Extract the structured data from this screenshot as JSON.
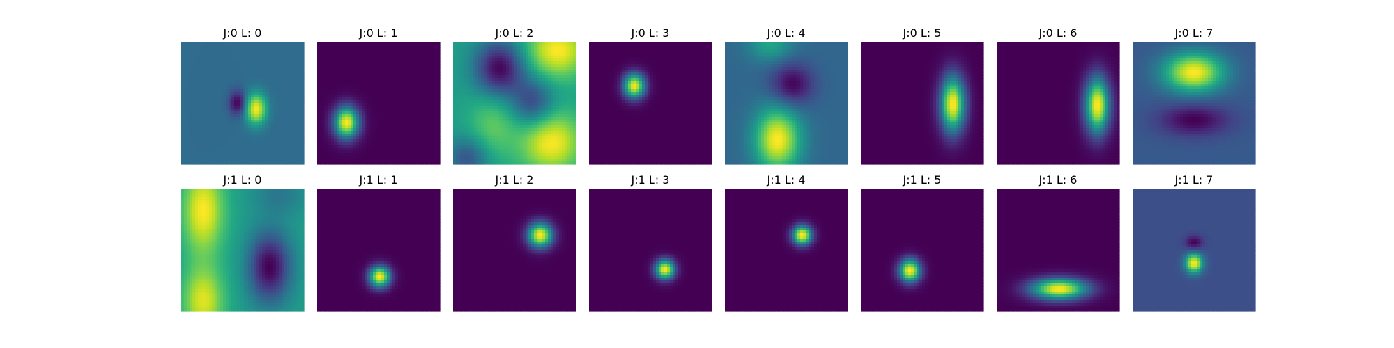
{
  "chart_data": {
    "type": "heatmap",
    "colormap": "viridis",
    "panels": [
      {
        "title": "J:0 L: 0",
        "j": 0,
        "l": 0,
        "background": 0.35,
        "blobs": [
          {
            "cx": 0.61,
            "cy": 0.55,
            "sx": 0.06,
            "sy": 0.09,
            "amp": 0.65
          },
          {
            "cx": 0.46,
            "cy": 0.5,
            "sx": 0.05,
            "sy": 0.07,
            "amp": -0.35
          }
        ]
      },
      {
        "title": "J:0 L: 1",
        "j": 0,
        "l": 1,
        "background": 0.0,
        "blobs": [
          {
            "cx": 0.24,
            "cy": 0.66,
            "sx": 0.07,
            "sy": 0.09,
            "amp": 1.0
          }
        ]
      },
      {
        "title": "J:0 L: 2",
        "j": 0,
        "l": 2,
        "background": 0.55,
        "blobs": [
          {
            "cx": 0.85,
            "cy": 0.07,
            "sx": 0.18,
            "sy": 0.16,
            "amp": 0.45
          },
          {
            "cx": 0.8,
            "cy": 0.82,
            "sx": 0.18,
            "sy": 0.18,
            "amp": 0.45
          },
          {
            "cx": 0.32,
            "cy": 0.68,
            "sx": 0.14,
            "sy": 0.2,
            "amp": 0.2
          },
          {
            "cx": 0.38,
            "cy": 0.22,
            "sx": 0.14,
            "sy": 0.16,
            "amp": -0.55
          },
          {
            "cx": 0.65,
            "cy": 0.5,
            "sx": 0.12,
            "sy": 0.14,
            "amp": -0.35
          },
          {
            "cx": 0.12,
            "cy": 0.95,
            "sx": 0.12,
            "sy": 0.12,
            "amp": -0.3
          }
        ]
      },
      {
        "title": "J:0 L: 3",
        "j": 0,
        "l": 3,
        "background": 0.0,
        "blobs": [
          {
            "cx": 0.37,
            "cy": 0.36,
            "sx": 0.06,
            "sy": 0.07,
            "amp": 1.0
          }
        ]
      },
      {
        "title": "J:0 L: 4",
        "j": 0,
        "l": 4,
        "background": 0.33,
        "blobs": [
          {
            "cx": 0.43,
            "cy": 0.8,
            "sx": 0.13,
            "sy": 0.18,
            "amp": 0.67
          },
          {
            "cx": 0.37,
            "cy": 0.02,
            "sx": 0.13,
            "sy": 0.1,
            "amp": 0.25
          },
          {
            "cx": 0.55,
            "cy": 0.35,
            "sx": 0.12,
            "sy": 0.12,
            "amp": -0.33
          }
        ]
      },
      {
        "title": "J:0 L: 5",
        "j": 0,
        "l": 5,
        "background": 0.0,
        "blobs": [
          {
            "cx": 0.75,
            "cy": 0.51,
            "sx": 0.07,
            "sy": 0.16,
            "amp": 1.0
          }
        ]
      },
      {
        "title": "J:0 L: 6",
        "j": 0,
        "l": 6,
        "background": 0.0,
        "blobs": [
          {
            "cx": 0.82,
            "cy": 0.52,
            "sx": 0.07,
            "sy": 0.16,
            "amp": 1.0
          }
        ]
      },
      {
        "title": "J:0 L: 7",
        "j": 0,
        "l": 7,
        "background": 0.28,
        "blobs": [
          {
            "cx": 0.5,
            "cy": 0.25,
            "sx": 0.17,
            "sy": 0.11,
            "amp": 0.72
          },
          {
            "cx": 0.5,
            "cy": 0.64,
            "sx": 0.2,
            "sy": 0.09,
            "amp": -0.28
          }
        ]
      },
      {
        "title": "J:1 L: 0",
        "j": 1,
        "l": 0,
        "background": 0.55,
        "blobs": [
          {
            "cx": 0.18,
            "cy": 0.18,
            "sx": 0.12,
            "sy": 0.25,
            "amp": 0.45
          },
          {
            "cx": 0.18,
            "cy": 0.92,
            "sx": 0.12,
            "sy": 0.2,
            "amp": 0.4
          },
          {
            "cx": 0.72,
            "cy": 0.64,
            "sx": 0.12,
            "sy": 0.2,
            "amp": -0.55
          },
          {
            "cx": 0.8,
            "cy": 0.05,
            "sx": 0.15,
            "sy": 0.12,
            "amp": -0.15
          }
        ]
      },
      {
        "title": "J:1 L: 1",
        "j": 1,
        "l": 1,
        "background": 0.0,
        "blobs": [
          {
            "cx": 0.51,
            "cy": 0.72,
            "sx": 0.06,
            "sy": 0.06,
            "amp": 1.0
          }
        ]
      },
      {
        "title": "J:1 L: 2",
        "j": 1,
        "l": 2,
        "background": 0.0,
        "blobs": [
          {
            "cx": 0.71,
            "cy": 0.38,
            "sx": 0.07,
            "sy": 0.07,
            "amp": 1.0
          }
        ]
      },
      {
        "title": "J:1 L: 3",
        "j": 1,
        "l": 3,
        "background": 0.0,
        "blobs": [
          {
            "cx": 0.62,
            "cy": 0.66,
            "sx": 0.055,
            "sy": 0.055,
            "amp": 1.0
          }
        ]
      },
      {
        "title": "J:1 L: 4",
        "j": 1,
        "l": 4,
        "background": 0.0,
        "blobs": [
          {
            "cx": 0.63,
            "cy": 0.38,
            "sx": 0.055,
            "sy": 0.055,
            "amp": 1.0
          }
        ]
      },
      {
        "title": "J:1 L: 5",
        "j": 1,
        "l": 5,
        "background": 0.0,
        "blobs": [
          {
            "cx": 0.4,
            "cy": 0.67,
            "sx": 0.06,
            "sy": 0.065,
            "amp": 1.0
          }
        ]
      },
      {
        "title": "J:1 L: 6",
        "j": 1,
        "l": 6,
        "background": 0.0,
        "blobs": [
          {
            "cx": 0.51,
            "cy": 0.82,
            "sx": 0.16,
            "sy": 0.06,
            "amp": 1.0
          }
        ]
      },
      {
        "title": "J:1 L: 7",
        "j": 1,
        "l": 7,
        "background": 0.24,
        "blobs": [
          {
            "cx": 0.5,
            "cy": 0.61,
            "sx": 0.05,
            "sy": 0.055,
            "amp": 0.76
          },
          {
            "cx": 0.5,
            "cy": 0.44,
            "sx": 0.05,
            "sy": 0.04,
            "amp": -0.24
          }
        ]
      }
    ]
  }
}
